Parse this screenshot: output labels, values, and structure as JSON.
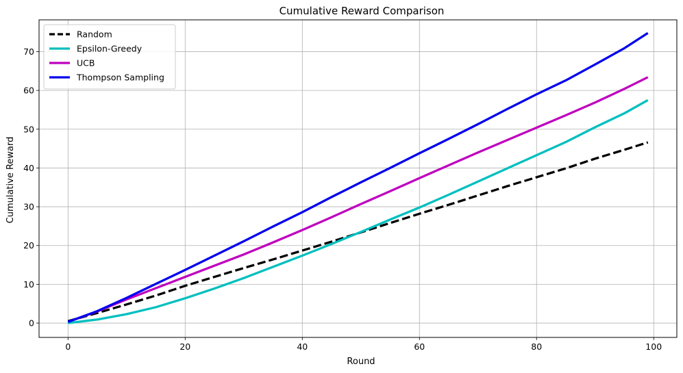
{
  "chart_data": {
    "type": "line",
    "title": "Cumulative Reward Comparison",
    "xlabel": "Round",
    "ylabel": "Cumulative Reward",
    "xlim": [
      -4.95,
      103.95
    ],
    "ylim": [
      -3.7,
      78.2
    ],
    "xticks": [
      0,
      20,
      40,
      60,
      80,
      100
    ],
    "yticks": [
      0,
      10,
      20,
      30,
      40,
      50,
      60,
      70
    ],
    "grid": true,
    "legend_position": "top-left",
    "series": [
      {
        "name": "Random",
        "color": "#000000",
        "dashed": true,
        "x": [
          0,
          5,
          10,
          15,
          20,
          25,
          30,
          35,
          40,
          45,
          50,
          55,
          60,
          65,
          70,
          75,
          80,
          85,
          90,
          95,
          99
        ],
        "y": [
          0.5,
          2.6,
          4.8,
          7.1,
          9.6,
          11.9,
          14.2,
          16.4,
          18.7,
          21.0,
          23.4,
          25.8,
          28.2,
          30.5,
          32.9,
          35.3,
          37.6,
          39.9,
          42.4,
          44.7,
          46.6
        ]
      },
      {
        "name": "Epsilon-Greedy",
        "color": "#00bfbf",
        "dashed": false,
        "x": [
          0,
          5,
          10,
          15,
          20,
          25,
          30,
          35,
          40,
          45,
          50,
          55,
          60,
          65,
          70,
          75,
          80,
          85,
          90,
          95,
          99
        ],
        "y": [
          0.0,
          0.9,
          2.3,
          4.1,
          6.4,
          8.9,
          11.6,
          14.5,
          17.4,
          20.4,
          23.5,
          26.7,
          29.8,
          33.1,
          36.5,
          39.9,
          43.3,
          46.7,
          50.5,
          54.1,
          57.5
        ]
      },
      {
        "name": "UCB",
        "color": "#bf00bf",
        "dashed": false,
        "x": [
          0,
          5,
          10,
          15,
          20,
          25,
          30,
          35,
          40,
          45,
          50,
          55,
          60,
          65,
          70,
          75,
          80,
          85,
          90,
          95,
          99
        ],
        "y": [
          0.3,
          3.0,
          6.1,
          9.0,
          11.9,
          14.8,
          17.7,
          20.8,
          24.0,
          27.3,
          30.7,
          34.0,
          37.4,
          40.7,
          44.0,
          47.2,
          50.4,
          53.6,
          56.9,
          60.4,
          63.4
        ]
      },
      {
        "name": "Thompson Sampling",
        "color": "#0000ee",
        "dashed": false,
        "x": [
          0,
          5,
          10,
          15,
          20,
          25,
          30,
          35,
          40,
          45,
          50,
          55,
          60,
          65,
          70,
          75,
          80,
          85,
          90,
          95,
          99
        ],
        "y": [
          0.3,
          3.1,
          6.5,
          10.1,
          13.7,
          17.4,
          21.1,
          24.9,
          28.6,
          32.5,
          36.3,
          40.0,
          43.8,
          47.5,
          51.3,
          55.2,
          59.0,
          62.6,
          66.7,
          70.9,
          74.8
        ]
      }
    ]
  }
}
